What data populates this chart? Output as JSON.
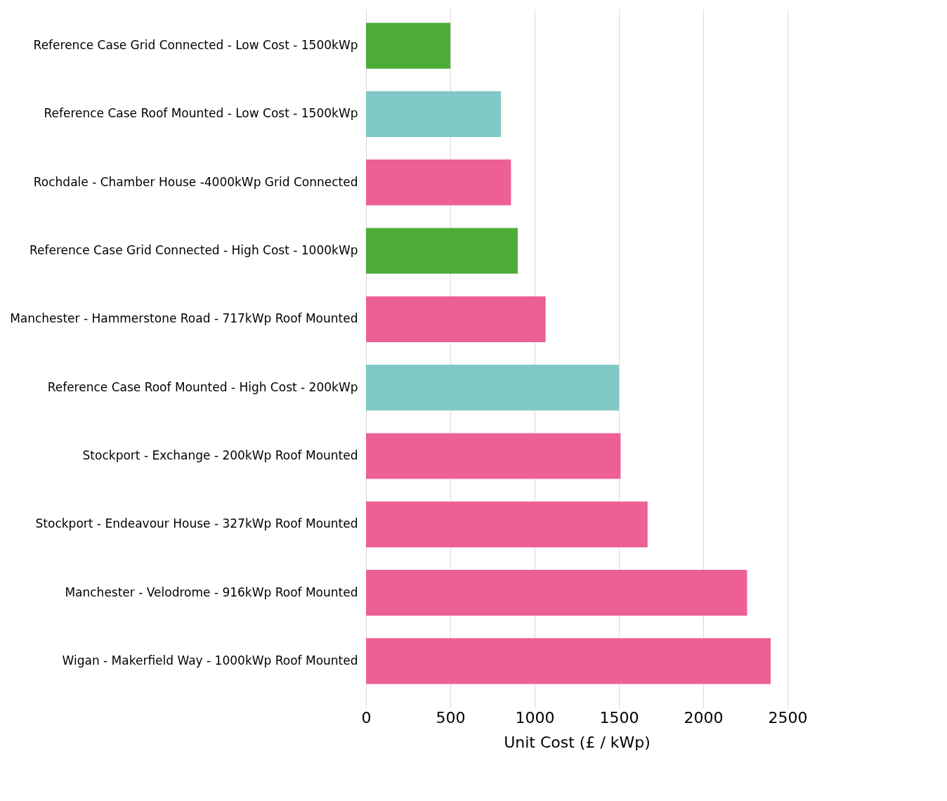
{
  "chart_data": {
    "type": "bar",
    "orientation": "horizontal",
    "xlabel": "Unit Cost (£ / kWp)",
    "categories": [
      "Reference Case Grid Connected - Low Cost - 1500kWp",
      "Reference Case Roof Mounted - Low Cost - 1500kWp",
      "Rochdale - Chamber House -4000kWp Grid Connected",
      "Reference Case Grid Connected - High Cost - 1000kWp",
      "Manchester - Hammerstone Road - 717kWp Roof Mounted",
      "Reference Case Roof Mounted - High Cost - 200kWp",
      "Stockport - Exchange - 200kWp Roof Mounted",
      "Stockport - Endeavour House - 327kWp Roof Mounted",
      "Manchester - Velodrome - 916kWp Roof Mounted",
      "Wigan - Makerfield Way - 1000kWp Roof Mounted"
    ],
    "values": [
      500,
      800,
      860,
      900,
      1065,
      1500,
      1510,
      1670,
      2260,
      2400
    ],
    "colors": [
      "#4dac35",
      "#80c9c6",
      "#ec6096",
      "#4dac35",
      "#ec6096",
      "#80c9c6",
      "#ec6096",
      "#ec6096",
      "#ec6096",
      "#ec6096"
    ],
    "xlim": [
      0,
      2500
    ],
    "xticks": [
      0,
      500,
      1000,
      1500,
      2000,
      2500
    ],
    "grid": "x"
  }
}
